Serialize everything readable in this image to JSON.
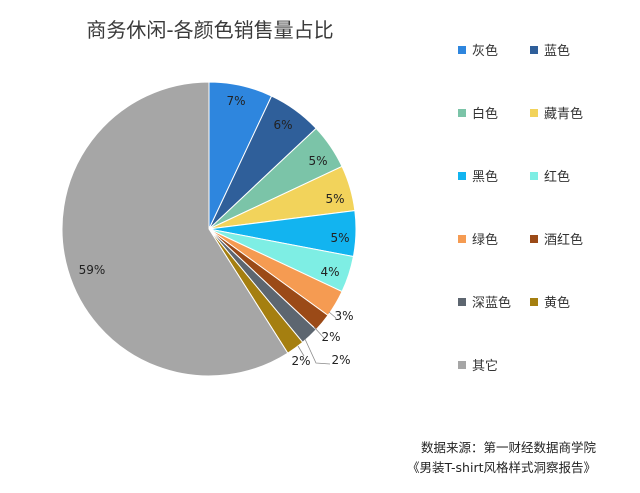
{
  "title": "商务休闲-各颜色销售量占比",
  "source": {
    "line1": "数据来源：第一财经数据商学院",
    "line2": "《男装T-shirt风格样式洞察报告》"
  },
  "chart_data": {
    "type": "pie",
    "title": "商务休闲-各颜色销售量占比",
    "legend_position": "right",
    "slices": [
      {
        "label": "灰色",
        "value": 7,
        "display": "7%",
        "color": "#2e86de"
      },
      {
        "label": "蓝色",
        "value": 6,
        "display": "6%",
        "color": "#2f5f9a"
      },
      {
        "label": "白色",
        "value": 5,
        "display": "5%",
        "color": "#7bc4a8"
      },
      {
        "label": "藏青色",
        "value": 5,
        "display": "5%",
        "color": "#f2d35b"
      },
      {
        "label": "黑色",
        "value": 5,
        "display": "5%",
        "color": "#12b4f0"
      },
      {
        "label": "红色",
        "value": 4,
        "display": "4%",
        "color": "#7eeee4"
      },
      {
        "label": "绿色",
        "value": 3,
        "display": "3%",
        "color": "#f59b52"
      },
      {
        "label": "酒红色",
        "value": 2,
        "display": "2%",
        "color": "#9b4a17"
      },
      {
        "label": "深蓝色",
        "value": 2,
        "display": "2%",
        "color": "#5d6670"
      },
      {
        "label": "黄色",
        "value": 2,
        "display": "2%",
        "color": "#a57f10"
      },
      {
        "label": "其它",
        "value": 59,
        "display": "59%",
        "color": "#a6a6a6"
      }
    ]
  }
}
